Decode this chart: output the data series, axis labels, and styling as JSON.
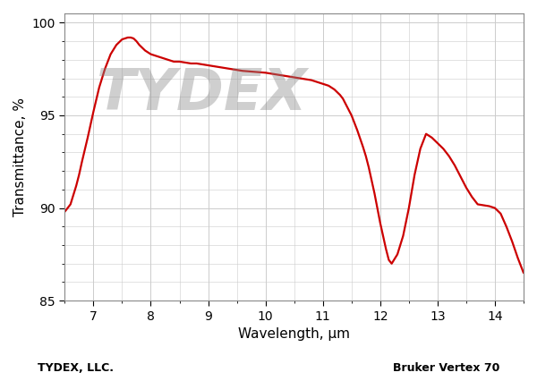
{
  "title": "",
  "xlabel": "Wavelength, μm",
  "ylabel": "Transmittance, %",
  "xlim": [
    6.5,
    14.5
  ],
  "ylim": [
    85,
    100.5
  ],
  "xticks": [
    7,
    8,
    9,
    10,
    11,
    12,
    13,
    14
  ],
  "yticks": [
    85,
    90,
    95,
    100
  ],
  "line_color": "#cc0000",
  "background_color": "#ffffff",
  "grid_color": "#cccccc",
  "bottom_label_left": "TYDEX, LLC.",
  "bottom_label_right": "Bruker Vertex 70",
  "watermark_text": "TYDEX",
  "curve_x": [
    6.5,
    6.6,
    6.7,
    6.75,
    6.8,
    6.9,
    7.0,
    7.1,
    7.2,
    7.3,
    7.4,
    7.5,
    7.6,
    7.65,
    7.7,
    7.75,
    7.8,
    7.9,
    8.0,
    8.1,
    8.2,
    8.3,
    8.4,
    8.5,
    8.6,
    8.7,
    8.8,
    8.9,
    9.0,
    9.2,
    9.4,
    9.6,
    9.8,
    10.0,
    10.2,
    10.4,
    10.6,
    10.8,
    11.0,
    11.1,
    11.2,
    11.3,
    11.35,
    11.4,
    11.5,
    11.6,
    11.7,
    11.75,
    11.8,
    11.9,
    12.0,
    12.05,
    12.1,
    12.15,
    12.2,
    12.3,
    12.4,
    12.5,
    12.6,
    12.7,
    12.8,
    12.9,
    13.0,
    13.1,
    13.2,
    13.3,
    13.4,
    13.5,
    13.6,
    13.7,
    13.8,
    13.9,
    14.0,
    14.1,
    14.2,
    14.3,
    14.4,
    14.5
  ],
  "curve_y": [
    89.8,
    90.2,
    91.2,
    91.8,
    92.5,
    93.8,
    95.2,
    96.5,
    97.5,
    98.3,
    98.8,
    99.1,
    99.2,
    99.2,
    99.15,
    99.0,
    98.8,
    98.5,
    98.3,
    98.2,
    98.1,
    98.0,
    97.9,
    97.9,
    97.85,
    97.8,
    97.8,
    97.75,
    97.7,
    97.6,
    97.5,
    97.4,
    97.35,
    97.3,
    97.2,
    97.1,
    97.0,
    96.9,
    96.7,
    96.6,
    96.4,
    96.1,
    95.9,
    95.6,
    95.0,
    94.2,
    93.3,
    92.8,
    92.2,
    90.8,
    89.2,
    88.5,
    87.8,
    87.2,
    87.0,
    87.5,
    88.5,
    90.0,
    91.8,
    93.2,
    94.0,
    93.8,
    93.5,
    93.2,
    92.8,
    92.3,
    91.7,
    91.1,
    90.6,
    90.2,
    90.15,
    90.1,
    90.0,
    89.7,
    89.0,
    88.2,
    87.3,
    86.5
  ]
}
